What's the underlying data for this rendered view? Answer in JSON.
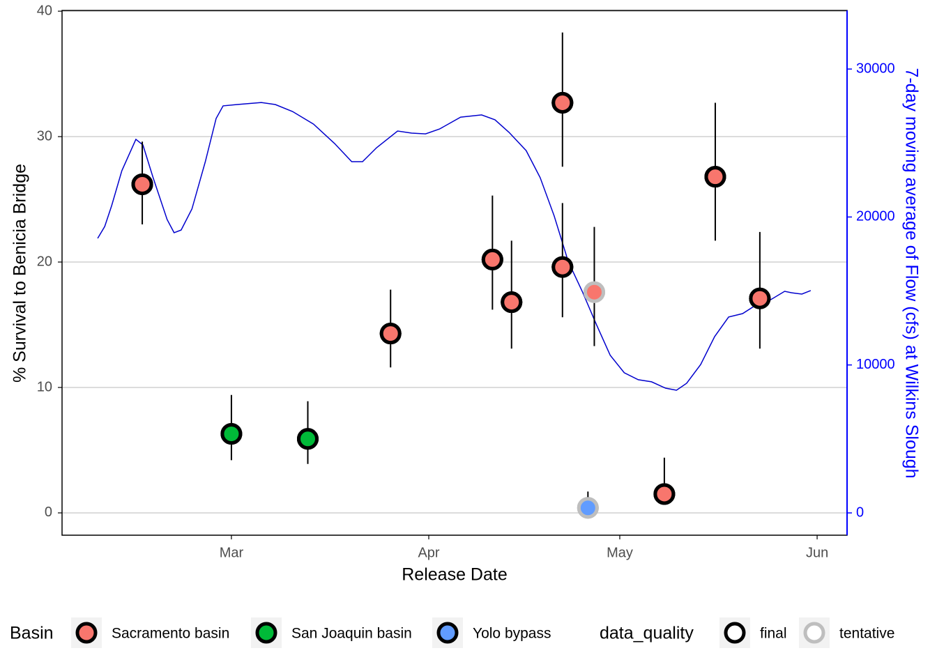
{
  "chart_data": {
    "type": "scatter",
    "x_label": "Release Date",
    "y_label": "% Survival to Benicia Bridge",
    "y2_label": "7-day moving average of Flow (cfs) at Wilkins Slough",
    "xlim": [
      33.4,
      156.7
    ],
    "xticks": [
      {
        "value": 60,
        "label": "Mar"
      },
      {
        "value": 91,
        "label": "Apr"
      },
      {
        "value": 121,
        "label": "May"
      },
      {
        "value": 152,
        "label": "Jun"
      }
    ],
    "ylim": [
      -1.78,
      40.06
    ],
    "yticks": [
      0,
      10,
      20,
      30,
      40
    ],
    "y2lim": [
      -1507,
      33960
    ],
    "y2ticks": [
      0,
      10000,
      20000,
      30000
    ],
    "grid": true,
    "legend_title": "Basin",
    "series": [
      {
        "name": "Sacramento basin",
        "color": "#F8766D",
        "x": [
          46,
          85,
          101,
          104,
          112,
          112,
          117,
          128,
          136,
          143
        ],
        "values": [
          26.2,
          14.3,
          20.2,
          16.8,
          32.7,
          19.6,
          17.6,
          1.5,
          26.8,
          17.1
        ],
        "upper": [
          29.6,
          17.8,
          25.3,
          21.7,
          38.3,
          24.7,
          22.8,
          4.4,
          32.7,
          22.4
        ],
        "lower": [
          23.0,
          11.6,
          16.2,
          13.1,
          27.6,
          15.6,
          13.3,
          0.8,
          21.7,
          13.1
        ],
        "quality": [
          "final",
          "final",
          "final",
          "final",
          "final",
          "final",
          "tentative",
          "final",
          "final",
          "final"
        ]
      },
      {
        "name": "San Joaquin basin",
        "color": "#00BA38",
        "x": [
          60,
          72
        ],
        "values": [
          6.3,
          5.9
        ],
        "upper": [
          9.4,
          8.9
        ],
        "lower": [
          4.2,
          3.9
        ],
        "quality": [
          "final",
          "final"
        ]
      },
      {
        "name": "Yolo bypass",
        "color": "#619CFF",
        "x": [
          116
        ],
        "values": [
          0.4
        ],
        "upper": [
          1.7
        ],
        "lower": [
          -0.2
        ],
        "quality": [
          "tentative"
        ]
      }
    ],
    "quality_legend": {
      "title": "data_quality",
      "items": [
        {
          "name": "final",
          "color": "#000000"
        },
        {
          "name": "tentative",
          "color": "#BEBEBE"
        }
      ]
    },
    "flow": {
      "axis": "y2",
      "color": "#0000CD",
      "x": [
        39.0,
        40.1,
        41.2,
        42.8,
        45.0,
        46.1,
        47.7,
        49.9,
        51.0,
        52.1,
        53.8,
        55.9,
        57.6,
        58.7,
        60.9,
        64.7,
        66.9,
        69.6,
        72.9,
        76.2,
        78.9,
        80.6,
        82.8,
        86.1,
        88.3,
        90.5,
        92.7,
        96.0,
        99.3,
        101.4,
        103.6,
        106.3,
        108.5,
        110.7,
        112.9,
        115.1,
        117.3,
        119.5,
        121.7,
        123.9,
        126.0,
        128.2,
        129.9,
        131.5,
        133.7,
        135.9,
        138.1,
        140.3,
        142.5,
        144.7,
        146.9,
        148.0,
        149.6,
        151.0
      ],
      "values": [
        18560,
        19360,
        20770,
        23130,
        25250,
        24870,
        22660,
        19830,
        18940,
        19120,
        20540,
        23740,
        26660,
        27510,
        27600,
        27740,
        27600,
        27130,
        26280,
        24970,
        23740,
        23740,
        24680,
        25810,
        25670,
        25620,
        25950,
        26750,
        26900,
        26570,
        25720,
        24490,
        22660,
        20070,
        17000,
        14980,
        12760,
        10650,
        9470,
        9000,
        8860,
        8430,
        8290,
        8760,
        10030,
        11920,
        13240,
        13470,
        14080,
        14410,
        14980,
        14880,
        14790,
        15030
      ]
    }
  }
}
